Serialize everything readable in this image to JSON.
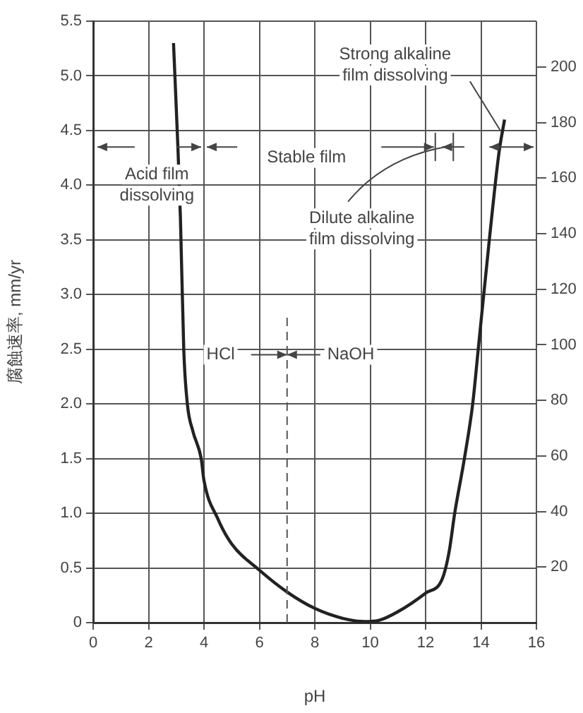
{
  "chart_data": {
    "type": "line",
    "xlabel": "pH",
    "ylabel": "腐蝕速率, mm/yr",
    "x": [
      2.9,
      3.05,
      3.15,
      3.27,
      3.4,
      3.6,
      3.9,
      4.0,
      4.5,
      5.0,
      6.0,
      7.0,
      8.0,
      9.0,
      9.8,
      10.3,
      11.0,
      12.0,
      12.6,
      12.85,
      13.05,
      13.4,
      13.7,
      13.9,
      14.3,
      14.65,
      14.85
    ],
    "series": [
      {
        "color": "#222222",
        "values": [
          5.3,
          4.4,
          3.7,
          2.5,
          2.0,
          1.75,
          1.5,
          1.3,
          0.95,
          0.72,
          0.48,
          0.28,
          0.13,
          0.04,
          0.01,
          0.02,
          0.1,
          0.27,
          0.4,
          0.65,
          1.0,
          1.5,
          2.0,
          2.5,
          3.5,
          4.3,
          4.6
        ]
      }
    ],
    "xlim": [
      0,
      16
    ],
    "xticks": [
      0,
      2,
      4,
      6,
      8,
      10,
      12,
      14,
      16
    ],
    "ylim": [
      0,
      5.5
    ],
    "yticks": [
      0,
      {
        "value": 0.5,
        "label": "0.5"
      },
      {
        "value": 1,
        "label": "1.0"
      },
      1.5,
      {
        "value": 2,
        "label": "2.0"
      },
      2.5,
      {
        "value": 3,
        "label": "3.0"
      },
      3.5,
      {
        "value": 4,
        "label": "4.0"
      },
      4.5,
      {
        "value": 5,
        "label": "5.0"
      },
      5.5
    ],
    "y2lim": [
      0,
      216.5
    ],
    "y2ticks": [
      20,
      40,
      60,
      80,
      100,
      120,
      140,
      160,
      180,
      200
    ],
    "grid": true,
    "legend": false,
    "marker": "none",
    "line_style": "solid",
    "ref_lines": [
      {
        "axis": "x",
        "value": 7,
        "line_style": "dashed",
        "color": "#555555"
      }
    ],
    "annotations": [
      "Acid film dissolving",
      "Stable film",
      "Strong alkaline film dissolving",
      "Dilute alkaline film dissolving",
      "HCl",
      "NaOH"
    ]
  }
}
